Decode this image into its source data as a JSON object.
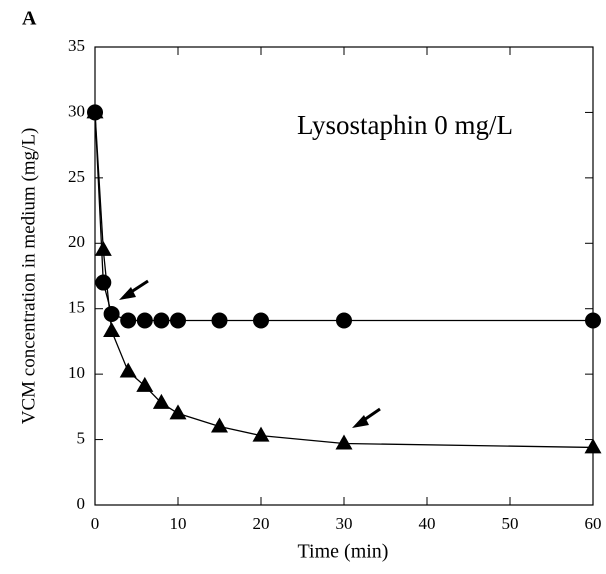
{
  "chart_data": {
    "type": "line",
    "panel_label": "A",
    "annotation": "Lysostaphin 0 mg/L",
    "x_label": "Time (min)",
    "y_label": "VCM concentration in medium (mg/L)",
    "x": [
      0,
      1,
      2,
      4,
      6,
      8,
      10,
      15,
      20,
      30,
      60
    ],
    "series": [
      {
        "marker": "circle",
        "color": "#000000",
        "values": [
          30,
          17,
          14.6,
          14.1,
          14.1,
          14.1,
          14.1,
          14.1,
          14.1,
          14.1,
          14.1
        ]
      },
      {
        "marker": "triangle",
        "color": "#000000",
        "values": [
          30,
          19.5,
          13.3,
          10.2,
          9.1,
          7.8,
          7.0,
          6.0,
          5.3,
          4.7,
          4.4
        ]
      }
    ],
    "xlim": [
      0,
      60
    ],
    "xticks": [
      0,
      10,
      20,
      30,
      40,
      50,
      60
    ],
    "ylim": [
      0,
      35
    ],
    "yticks": [
      0,
      5,
      10,
      15,
      20,
      25,
      30,
      35
    ]
  }
}
